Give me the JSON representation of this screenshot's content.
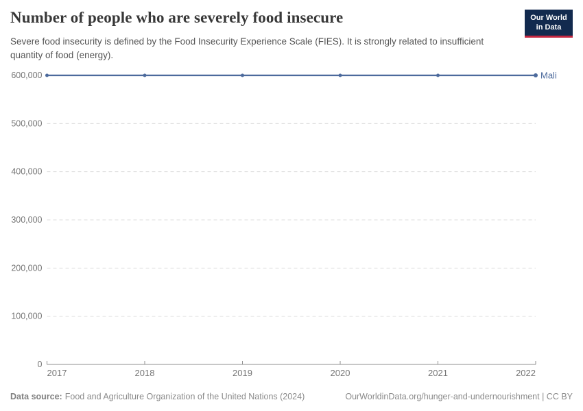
{
  "header": {
    "title": "Number of people who are severely food insecure",
    "subtitle": "Severe food insecurity is defined by the Food Insecurity Experience Scale (FIES). It is strongly related to insufficient quantity of food (energy).",
    "logo": {
      "line1": "Our World",
      "line2": "in Data"
    }
  },
  "chart_data": {
    "type": "line",
    "title": "Number of people who are severely food insecure",
    "x": [
      2017,
      2018,
      2019,
      2020,
      2021,
      2022
    ],
    "series": [
      {
        "name": "Mali",
        "color": "#4c6a9c",
        "x": [
          2017,
          2018,
          2019,
          2020,
          2021,
          2022
        ],
        "values": [
          600000,
          600000,
          600000,
          600000,
          600000,
          600000
        ]
      }
    ],
    "x_ticks": [
      2017,
      2018,
      2019,
      2020,
      2021,
      2022
    ],
    "y_ticks": [
      0,
      100000,
      200000,
      300000,
      400000,
      500000,
      600000
    ],
    "xlim": [
      2017,
      2022
    ],
    "ylim": [
      0,
      600000
    ],
    "xlabel": "",
    "ylabel": "",
    "grid": "horizontal dashed",
    "legend_position": "series label right of line end",
    "colors": {
      "grid": "#dcdcdc",
      "axis": "#8f8f8f",
      "tick_label": "#757575"
    }
  },
  "footer": {
    "datasource_label": "Data source:",
    "datasource_text": "Food and Agriculture Organization of the United Nations (2024)",
    "license": "OurWorldinData.org/hunger-and-undernourishment | CC BY"
  }
}
